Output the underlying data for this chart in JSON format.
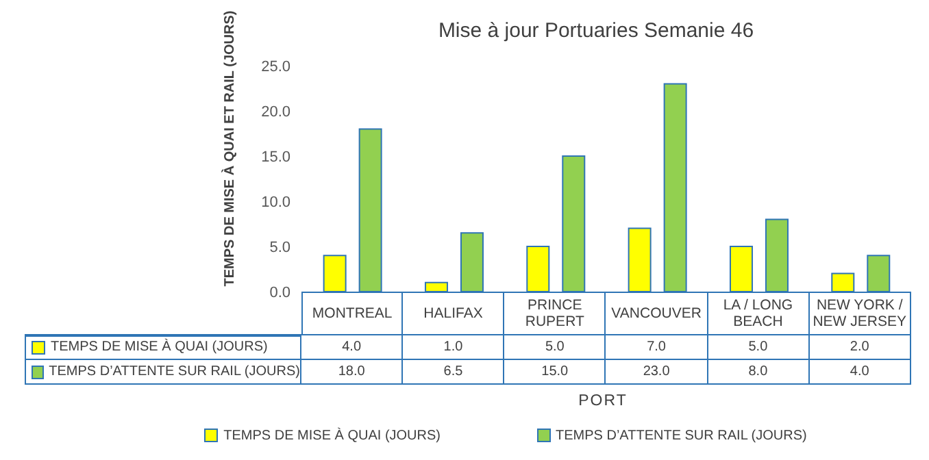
{
  "chart_data": {
    "type": "bar",
    "title": "Mise à jour Portuaries Semanie 46",
    "xlabel": "PORT",
    "ylabel": "TEMPS DE MISE À QUAI ET RAIL (JOURS)",
    "categories": [
      "MONTREAL",
      "HALIFAX",
      "PRINCE RUPERT",
      "VANCOUVER",
      "LA / LONG BEACH",
      "NEW YORK / NEW JERSEY"
    ],
    "series": [
      {
        "name": "TEMPS DE MISE À QUAI (JOURS)",
        "color": "#ffff00",
        "values": [
          4.0,
          1.0,
          5.0,
          7.0,
          5.0,
          2.0
        ],
        "value_labels": [
          "4.0",
          "1.0",
          "5.0",
          "7.0",
          "5.0",
          "2.0"
        ]
      },
      {
        "name": "TEMPS  D’ATTENTE SUR RAIL (JOURS)",
        "color": "#92d050",
        "values": [
          18.0,
          6.5,
          15.0,
          23.0,
          8.0,
          4.0
        ],
        "value_labels": [
          "18.0",
          "6.5",
          "15.0",
          "23.0",
          "8.0",
          "4.0"
        ]
      }
    ],
    "ylim": [
      0,
      25
    ],
    "yticks": [
      {
        "value": 0,
        "label": "0.0"
      },
      {
        "value": 5,
        "label": "5.0"
      },
      {
        "value": 10,
        "label": "10.0"
      },
      {
        "value": 15,
        "label": "15.0"
      },
      {
        "value": 20,
        "label": "20.0"
      },
      {
        "value": 25,
        "label": "25.0"
      }
    ],
    "grid": false,
    "legend": "bottom"
  }
}
